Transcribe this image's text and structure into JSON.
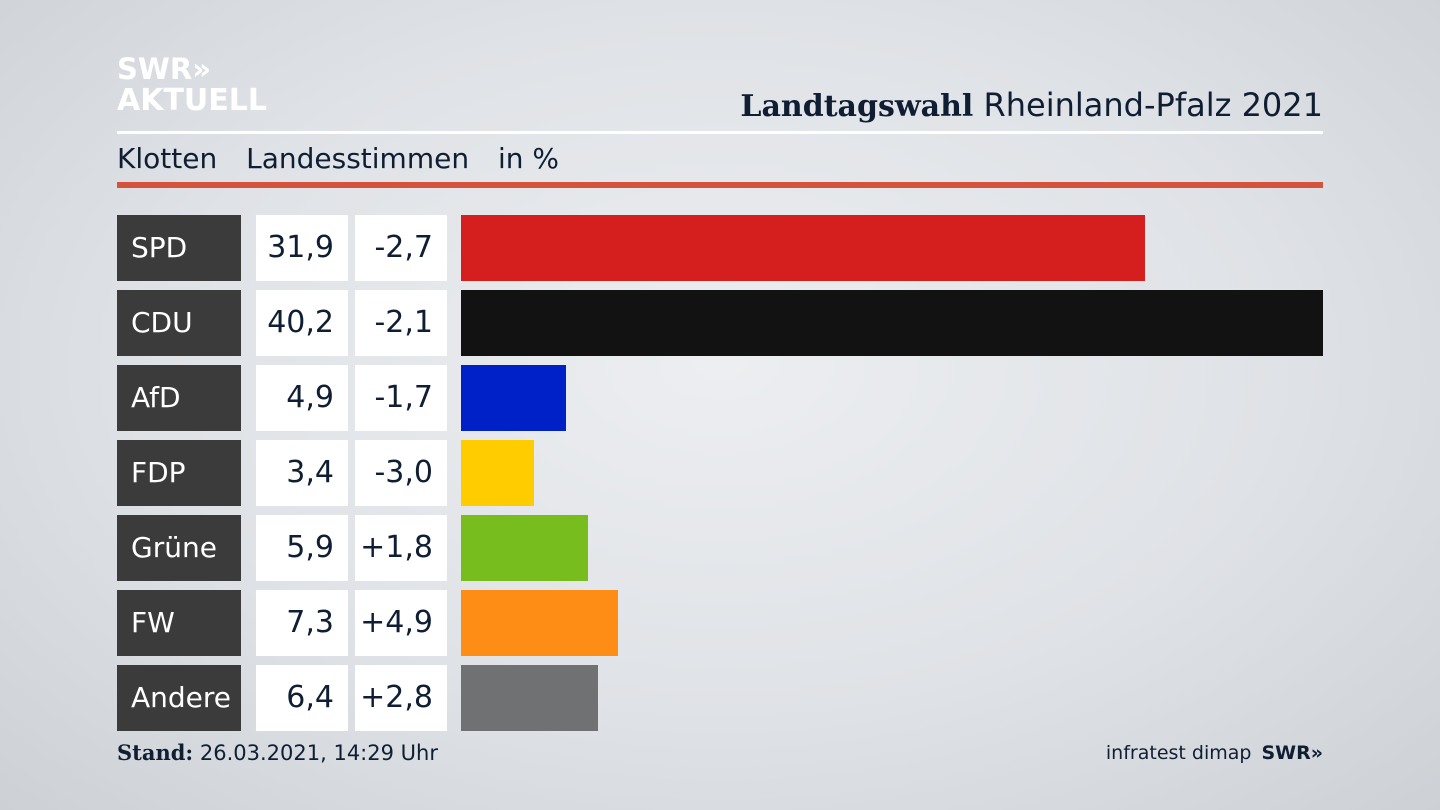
{
  "logo": {
    "line1": "SWR",
    "chevrons": "»",
    "line2": "AKTUELL"
  },
  "headline": {
    "bold": "Landtagswahl",
    "rest": "Rheinland-Pfalz 2021"
  },
  "subhead": {
    "place": "Klotten",
    "vote_type": "Landesstimmen",
    "unit": "in %"
  },
  "chart_data": {
    "type": "bar",
    "orientation": "horizontal",
    "categories": [
      "SPD",
      "CDU",
      "AfD",
      "FDP",
      "Grüne",
      "FW",
      "Andere"
    ],
    "values": [
      31.9,
      40.2,
      4.9,
      3.4,
      5.9,
      7.3,
      6.4
    ],
    "value_labels": [
      "31,9",
      "40,2",
      "4,9",
      "3,4",
      "5,9",
      "7,3",
      "6,4"
    ],
    "diff_labels": [
      "-2,7",
      "-2,1",
      "-1,7",
      "-3,0",
      "+1,8",
      "+4,9",
      "+2,8"
    ],
    "colors": [
      "#d51f1f",
      "#121212",
      "#0020c8",
      "#ffcc00",
      "#78bd1e",
      "#fe8d15",
      "#707173"
    ],
    "xlim": [
      0,
      40.2
    ],
    "ylabel": "in %"
  },
  "footer": {
    "stand_label": "Stand:",
    "stand_value": "26.03.2021, 14:29 Uhr",
    "source": "infratest dimap",
    "brand": "SWR»"
  }
}
